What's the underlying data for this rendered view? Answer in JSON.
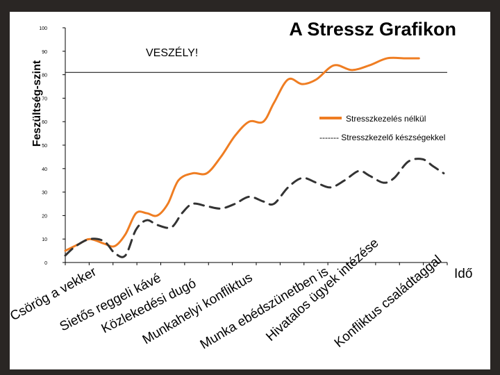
{
  "chart_data": {
    "type": "line",
    "title": "A Stressz Grafikon",
    "ylabel": "Feszültség-szint",
    "xlabel": "Idő",
    "ylim": [
      0,
      100
    ],
    "yticks": [
      0,
      10,
      20,
      30,
      40,
      50,
      60,
      70,
      80,
      90,
      100
    ],
    "danger_label": "VESZÉLY!",
    "danger_level": 81,
    "categories": [
      "Csörög a vekker",
      "Sietős reggeli kávé",
      "Közlekedési dugó",
      "Munkahelyi konfliktus",
      "Munka ebédszünetben is",
      "Hivatalos ügyek intézése",
      "Konfliktus családtaggal"
    ],
    "series": [
      {
        "name": "Stresszkezelés nélkül",
        "color": "#ef7d22",
        "style": "solid",
        "values": [
          [
            0,
            5
          ],
          [
            0.4,
            8
          ],
          [
            0.7,
            10
          ],
          [
            1.1,
            8
          ],
          [
            1.4,
            7
          ],
          [
            1.7,
            12
          ],
          [
            2.0,
            21
          ],
          [
            2.3,
            21
          ],
          [
            2.6,
            20
          ],
          [
            2.9,
            25
          ],
          [
            3.2,
            35
          ],
          [
            3.6,
            38
          ],
          [
            4.0,
            38
          ],
          [
            4.4,
            45
          ],
          [
            4.8,
            54
          ],
          [
            5.2,
            60
          ],
          [
            5.6,
            60
          ],
          [
            5.9,
            68
          ],
          [
            6.3,
            78
          ],
          [
            6.7,
            76
          ],
          [
            7.1,
            78
          ],
          [
            7.6,
            84
          ],
          [
            8.1,
            82
          ],
          [
            8.6,
            84
          ],
          [
            9.1,
            87
          ],
          [
            9.6,
            87
          ],
          [
            10.0,
            87
          ]
        ]
      },
      {
        "name": "Stresszkezelő készségekkel",
        "legend_label": "------- Stresszkezelő készségekkel",
        "color": "#333333",
        "style": "dashed",
        "values": [
          [
            0,
            3
          ],
          [
            0.3,
            7
          ],
          [
            0.7,
            10
          ],
          [
            1.1,
            9
          ],
          [
            1.4,
            4
          ],
          [
            1.7,
            3
          ],
          [
            2.0,
            14
          ],
          [
            2.3,
            18
          ],
          [
            2.6,
            16
          ],
          [
            3.0,
            15
          ],
          [
            3.3,
            21
          ],
          [
            3.6,
            25
          ],
          [
            4.0,
            24
          ],
          [
            4.4,
            23
          ],
          [
            4.8,
            25
          ],
          [
            5.2,
            28
          ],
          [
            5.6,
            26
          ],
          [
            5.9,
            25
          ],
          [
            6.3,
            32
          ],
          [
            6.7,
            36
          ],
          [
            7.1,
            34
          ],
          [
            7.5,
            32
          ],
          [
            7.9,
            35
          ],
          [
            8.3,
            39
          ],
          [
            8.6,
            37
          ],
          [
            9.0,
            34
          ],
          [
            9.3,
            36
          ],
          [
            9.7,
            43
          ],
          [
            10.1,
            44
          ],
          [
            10.4,
            41
          ],
          [
            10.7,
            38
          ]
        ]
      }
    ],
    "legend_position": "right"
  }
}
